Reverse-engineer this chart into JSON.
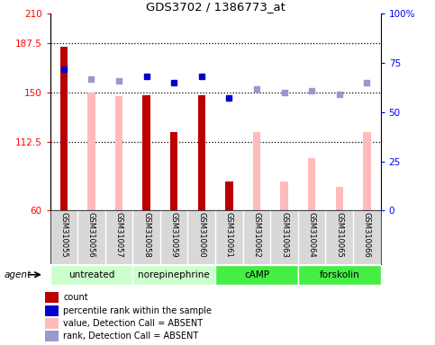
{
  "title": "GDS3702 / 1386773_at",
  "samples": [
    "GSM310055",
    "GSM310056",
    "GSM310057",
    "GSM310058",
    "GSM310059",
    "GSM310060",
    "GSM310061",
    "GSM310062",
    "GSM310063",
    "GSM310064",
    "GSM310065",
    "GSM310066"
  ],
  "count_values": [
    185,
    null,
    null,
    148,
    120,
    148,
    82,
    null,
    null,
    null,
    null,
    null
  ],
  "count_color": "#bb0000",
  "absent_bar_values": [
    null,
    150,
    147,
    null,
    null,
    null,
    null,
    120,
    82,
    100,
    78,
    120
  ],
  "absent_bar_color": "#ffbbbb",
  "rank_present": [
    72,
    null,
    null,
    68,
    65,
    68,
    57,
    null,
    null,
    null,
    null,
    null
  ],
  "rank_absent": [
    null,
    67,
    66,
    null,
    null,
    null,
    null,
    62,
    60,
    61,
    59,
    65
  ],
  "rank_present_color": "#0000cc",
  "rank_absent_color": "#9999cc",
  "ylim_left": [
    60,
    210
  ],
  "ylim_right": [
    0,
    100
  ],
  "yticks_left": [
    60,
    112.5,
    150,
    187.5,
    210
  ],
  "yticks_right": [
    0,
    25,
    50,
    75,
    100
  ],
  "hlines": [
    112.5,
    150,
    187.5
  ],
  "groups": [
    {
      "label": "untreated",
      "color": "#ccffcc",
      "start": 0,
      "end": 2
    },
    {
      "label": "norepinephrine",
      "color": "#ccffcc",
      "start": 3,
      "end": 5
    },
    {
      "label": "cAMP",
      "color": "#44ee44",
      "start": 6,
      "end": 8
    },
    {
      "label": "forskolin",
      "color": "#44ee44",
      "start": 9,
      "end": 11
    }
  ],
  "legend_labels": [
    "count",
    "percentile rank within the sample",
    "value, Detection Call = ABSENT",
    "rank, Detection Call = ABSENT"
  ],
  "legend_colors": [
    "#bb0000",
    "#0000cc",
    "#ffbbbb",
    "#9999cc"
  ],
  "agent_label": "agent",
  "bar_width": 0.5
}
